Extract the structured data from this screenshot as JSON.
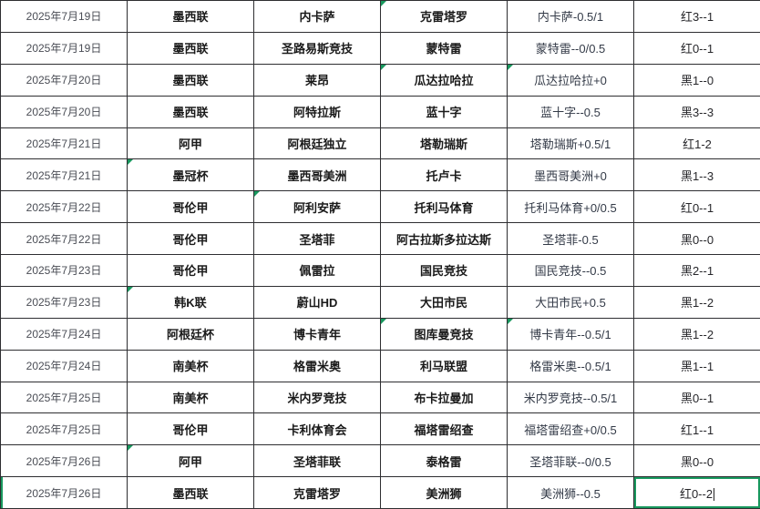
{
  "app": "spreadsheet-match-table",
  "colors": {
    "grid_line": "#2E2E31",
    "selection_green": "#18985E",
    "corner_marker_green": "#18985E",
    "date_text": "#4A4D55",
    "bold_text": "#1A1A1A",
    "background": "#FFFFFF"
  },
  "table": {
    "columns": [
      "date",
      "league",
      "home",
      "away",
      "handicap",
      "result"
    ],
    "rows": [
      {
        "date": "2025年7月19日",
        "league": "墨西联",
        "home": "内卡萨",
        "away": "克雷塔罗",
        "handicap": "内卡萨-0.5/1",
        "result": "红3--1",
        "marks": [
          "away"
        ]
      },
      {
        "date": "2025年7月19日",
        "league": "墨西联",
        "home": "圣路易斯竞技",
        "away": "蒙特雷",
        "handicap": "蒙特雷--0/0.5",
        "result": "红0--1",
        "marks": []
      },
      {
        "date": "2025年7月20日",
        "league": "墨西联",
        "home": "莱昂",
        "away": "瓜达拉哈拉",
        "handicap": "瓜达拉哈拉+0",
        "result": "黑1--0",
        "marks": [
          "away",
          "handicap"
        ]
      },
      {
        "date": "2025年7月20日",
        "league": "墨西联",
        "home": "阿特拉斯",
        "away": "蓝十字",
        "handicap": "蓝十字--0.5",
        "result": "黑3--3",
        "marks": []
      },
      {
        "date": "2025年7月21日",
        "league": "阿甲",
        "home": "阿根廷独立",
        "away": "塔勒瑞斯",
        "handicap": "塔勒瑞斯+0.5/1",
        "result": "红1-2",
        "marks": []
      },
      {
        "date": "2025年7月21日",
        "league": "墨冠杯",
        "home": "墨西哥美洲",
        "away": "托卢卡",
        "handicap": "墨西哥美洲+0",
        "result": "黑1--3",
        "marks": [
          "league"
        ]
      },
      {
        "date": "2025年7月22日",
        "league": "哥伦甲",
        "home": "阿利安萨",
        "away": "托利马体育",
        "handicap": "托利马体育+0/0.5",
        "result": "红0--1",
        "marks": [
          "home"
        ]
      },
      {
        "date": "2025年7月22日",
        "league": "哥伦甲",
        "home": "圣塔菲",
        "away": "阿古拉斯多拉达斯",
        "handicap": "圣塔菲-0.5",
        "result": "黑0--0",
        "marks": []
      },
      {
        "date": "2025年7月23日",
        "league": "哥伦甲",
        "home": "佩雷拉",
        "away": "国民竞技",
        "handicap": "国民竞技--0.5",
        "result": "黑2--1",
        "marks": []
      },
      {
        "date": "2025年7月23日",
        "league": "韩K联",
        "home": "蔚山HD",
        "away": "大田市民",
        "handicap": "大田市民+0.5",
        "result": "黑1--2",
        "marks": [
          "league"
        ]
      },
      {
        "date": "2025年7月24日",
        "league": "阿根廷杯",
        "home": "博卡青年",
        "away": "图库曼竞技",
        "handicap": "博卡青年--0.5/1",
        "result": "黑1--2",
        "marks": [
          "away",
          "handicap"
        ]
      },
      {
        "date": "2025年7月24日",
        "league": "南美杯",
        "home": "格雷米奥",
        "away": "利马联盟",
        "handicap": "格雷米奥--0.5/1",
        "result": "黑1--1",
        "marks": []
      },
      {
        "date": "2025年7月25日",
        "league": "南美杯",
        "home": "米内罗竞技",
        "away": "布卡拉曼加",
        "handicap": "米内罗竞技--0.5/1",
        "result": "黑0--1",
        "marks": []
      },
      {
        "date": "2025年7月25日",
        "league": "哥伦甲",
        "home": "卡利体育会",
        "away": "福塔雷绍查",
        "handicap": "福塔雷绍查+0/0.5",
        "result": "红1--1",
        "marks": []
      },
      {
        "date": "2025年7月26日",
        "league": "阿甲",
        "home": "圣塔菲联",
        "away": "泰格雷",
        "handicap": "圣塔菲联--0/0.5",
        "result": "黑0--0",
        "marks": [
          "league"
        ]
      },
      {
        "date": "2025年7月26日",
        "league": "墨西联",
        "home": "克雷塔罗",
        "away": "美洲狮",
        "handicap": "美洲狮--0.5",
        "result": "红0--2",
        "marks": []
      }
    ],
    "active_cell": {
      "row_index": 15,
      "field": "result",
      "value": "红0--2"
    }
  }
}
